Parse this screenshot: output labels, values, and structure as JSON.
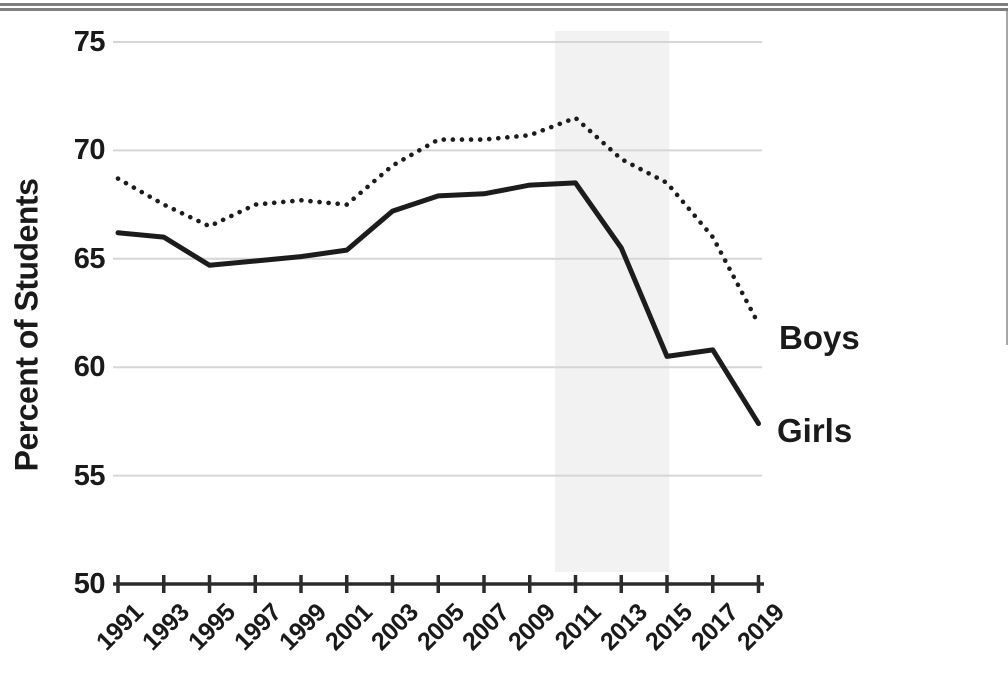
{
  "page": {
    "background": "#ffffff"
  },
  "frame": {
    "top_rule_color": "#7e7e7e",
    "right_rule_color": "#a6a6a6"
  },
  "chart_data": {
    "type": "line",
    "title": "",
    "xlabel": "",
    "ylabel": "Percent of Students",
    "x": [
      1991,
      1993,
      1995,
      1997,
      1999,
      2001,
      2003,
      2005,
      2007,
      2009,
      2011,
      2013,
      2015,
      2017,
      2019
    ],
    "x_tick_labels": [
      "1991",
      "1993",
      "1995",
      "1997",
      "1999",
      "2001",
      "2003",
      "2005",
      "2007",
      "2009",
      "2011",
      "2013",
      "2015",
      "2017",
      "2019"
    ],
    "xlim": [
      1991,
      2019
    ],
    "ylim": [
      50,
      75
    ],
    "yticks": [
      50,
      55,
      60,
      65,
      70,
      75
    ],
    "grid": true,
    "legend_position": "inline-line-end-labels",
    "series": [
      {
        "name": "Boys",
        "label": "Boys",
        "line_style": "dotted",
        "values": [
          68.7,
          67.5,
          66.5,
          67.5,
          67.7,
          67.5,
          69.3,
          70.5,
          70.5,
          70.7,
          71.5,
          69.6,
          68.5,
          66.0,
          62.0
        ]
      },
      {
        "name": "Girls",
        "label": "Girls",
        "line_style": "solid",
        "values": [
          66.2,
          66.0,
          64.7,
          64.9,
          65.1,
          65.4,
          67.2,
          67.9,
          68.0,
          68.4,
          68.5,
          65.5,
          60.5,
          60.8,
          57.4
        ]
      }
    ],
    "highlight_band": {
      "x_start": 2010.1,
      "x_end": 2015.1,
      "color": "#f2f2f2"
    },
    "line_color": "#1c1c1c",
    "grid_color": "#d6d6d6",
    "axis_color": "#2b2b2b",
    "text_color": "#1a1a1a"
  }
}
